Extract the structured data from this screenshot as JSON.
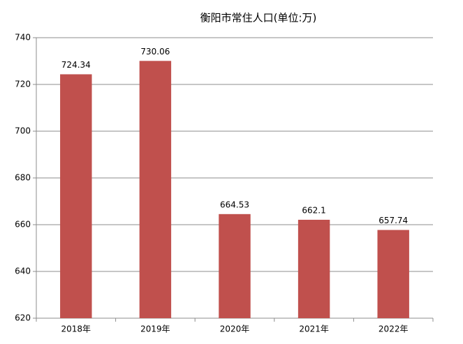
{
  "chart_data": {
    "type": "bar",
    "title": "衡阳市常住人口(单位:万)",
    "categories": [
      "2018年",
      "2019年",
      "2020年",
      "2021年",
      "2022年"
    ],
    "values": [
      724.34,
      730.06,
      664.53,
      662.1,
      657.74
    ],
    "color": "#c0504d",
    "ylim": [
      620,
      740
    ],
    "yticks": [
      620,
      640,
      660,
      680,
      700,
      720,
      740
    ],
    "grid": true
  }
}
